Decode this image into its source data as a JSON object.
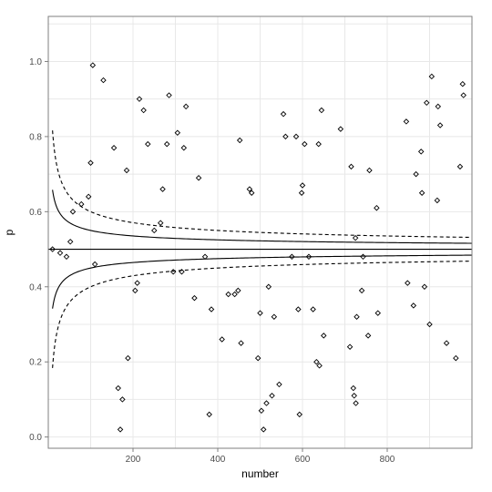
{
  "chart_data": {
    "type": "scatter",
    "xlabel": "number",
    "ylabel": "p",
    "xlim": [
      0,
      1000
    ],
    "ylim": [
      -0.03,
      1.12
    ],
    "x_ticks": [
      200,
      400,
      600,
      800
    ],
    "y_ticks": [
      0.0,
      0.2,
      0.4,
      0.6,
      0.8,
      1.0
    ],
    "x_tick_labels": [
      "200",
      "400",
      "600",
      "800"
    ],
    "y_tick_labels": [
      "0.0",
      "0.2",
      "0.4",
      "0.6",
      "0.8",
      "1.0"
    ],
    "grid": true,
    "reference_line": {
      "y": 0.5
    },
    "curves": [
      {
        "style": "solid",
        "z": 1.0,
        "x_range": [
          10,
          1000
        ]
      },
      {
        "style": "dashed",
        "z": 2.0,
        "x_range": [
          10,
          1000
        ]
      }
    ],
    "points": [
      {
        "x": 10,
        "y": 0.5
      },
      {
        "x": 28,
        "y": 0.49
      },
      {
        "x": 43,
        "y": 0.48
      },
      {
        "x": 52,
        "y": 0.52
      },
      {
        "x": 58,
        "y": 0.6
      },
      {
        "x": 78,
        "y": 0.62
      },
      {
        "x": 95,
        "y": 0.64
      },
      {
        "x": 100,
        "y": 0.73
      },
      {
        "x": 105,
        "y": 0.99
      },
      {
        "x": 110,
        "y": 0.46
      },
      {
        "x": 130,
        "y": 0.95
      },
      {
        "x": 155,
        "y": 0.77
      },
      {
        "x": 165,
        "y": 0.13
      },
      {
        "x": 170,
        "y": 0.02
      },
      {
        "x": 175,
        "y": 0.1
      },
      {
        "x": 185,
        "y": 0.71
      },
      {
        "x": 188,
        "y": 0.21
      },
      {
        "x": 205,
        "y": 0.39
      },
      {
        "x": 210,
        "y": 0.41
      },
      {
        "x": 215,
        "y": 0.9
      },
      {
        "x": 225,
        "y": 0.87
      },
      {
        "x": 235,
        "y": 0.78
      },
      {
        "x": 250,
        "y": 0.55
      },
      {
        "x": 265,
        "y": 0.57
      },
      {
        "x": 270,
        "y": 0.66
      },
      {
        "x": 280,
        "y": 0.78
      },
      {
        "x": 285,
        "y": 0.91
      },
      {
        "x": 295,
        "y": 0.44
      },
      {
        "x": 305,
        "y": 0.81
      },
      {
        "x": 315,
        "y": 0.44
      },
      {
        "x": 320,
        "y": 0.77
      },
      {
        "x": 325,
        "y": 0.88
      },
      {
        "x": 345,
        "y": 0.37
      },
      {
        "x": 355,
        "y": 0.69
      },
      {
        "x": 370,
        "y": 0.48
      },
      {
        "x": 380,
        "y": 0.06
      },
      {
        "x": 385,
        "y": 0.34
      },
      {
        "x": 410,
        "y": 0.26
      },
      {
        "x": 425,
        "y": 0.38
      },
      {
        "x": 440,
        "y": 0.38
      },
      {
        "x": 448,
        "y": 0.39
      },
      {
        "x": 452,
        "y": 0.79
      },
      {
        "x": 455,
        "y": 0.25
      },
      {
        "x": 475,
        "y": 0.66
      },
      {
        "x": 480,
        "y": 0.65
      },
      {
        "x": 495,
        "y": 0.21
      },
      {
        "x": 500,
        "y": 0.33
      },
      {
        "x": 503,
        "y": 0.07
      },
      {
        "x": 508,
        "y": 0.02
      },
      {
        "x": 515,
        "y": 0.09
      },
      {
        "x": 520,
        "y": 0.4
      },
      {
        "x": 528,
        "y": 0.11
      },
      {
        "x": 533,
        "y": 0.32
      },
      {
        "x": 545,
        "y": 0.14
      },
      {
        "x": 555,
        "y": 0.86
      },
      {
        "x": 560,
        "y": 0.8
      },
      {
        "x": 575,
        "y": 0.48
      },
      {
        "x": 585,
        "y": 0.8
      },
      {
        "x": 590,
        "y": 0.34
      },
      {
        "x": 593,
        "y": 0.06
      },
      {
        "x": 598,
        "y": 0.65
      },
      {
        "x": 600,
        "y": 0.67
      },
      {
        "x": 605,
        "y": 0.78
      },
      {
        "x": 615,
        "y": 0.48
      },
      {
        "x": 625,
        "y": 0.34
      },
      {
        "x": 633,
        "y": 0.2
      },
      {
        "x": 638,
        "y": 0.78
      },
      {
        "x": 640,
        "y": 0.19
      },
      {
        "x": 645,
        "y": 0.87
      },
      {
        "x": 650,
        "y": 0.27
      },
      {
        "x": 690,
        "y": 0.82
      },
      {
        "x": 712,
        "y": 0.24
      },
      {
        "x": 715,
        "y": 0.72
      },
      {
        "x": 720,
        "y": 0.13
      },
      {
        "x": 722,
        "y": 0.11
      },
      {
        "x": 725,
        "y": 0.53
      },
      {
        "x": 726,
        "y": 0.09
      },
      {
        "x": 728,
        "y": 0.32
      },
      {
        "x": 740,
        "y": 0.39
      },
      {
        "x": 743,
        "y": 0.48
      },
      {
        "x": 755,
        "y": 0.27
      },
      {
        "x": 758,
        "y": 0.71
      },
      {
        "x": 775,
        "y": 0.61
      },
      {
        "x": 778,
        "y": 0.33
      },
      {
        "x": 845,
        "y": 0.84
      },
      {
        "x": 848,
        "y": 0.41
      },
      {
        "x": 862,
        "y": 0.35
      },
      {
        "x": 868,
        "y": 0.7
      },
      {
        "x": 880,
        "y": 0.76
      },
      {
        "x": 882,
        "y": 0.65
      },
      {
        "x": 888,
        "y": 0.4
      },
      {
        "x": 893,
        "y": 0.89
      },
      {
        "x": 900,
        "y": 0.3
      },
      {
        "x": 905,
        "y": 0.96
      },
      {
        "x": 918,
        "y": 0.63
      },
      {
        "x": 920,
        "y": 0.88
      },
      {
        "x": 925,
        "y": 0.83
      },
      {
        "x": 940,
        "y": 0.25
      },
      {
        "x": 962,
        "y": 0.21
      },
      {
        "x": 972,
        "y": 0.72
      },
      {
        "x": 978,
        "y": 0.94
      },
      {
        "x": 980,
        "y": 0.91
      }
    ]
  },
  "colors": {
    "background": "#ffffff",
    "grid": "#e8e8e8",
    "axis": "#7f7f7f",
    "ink": "#000000"
  }
}
